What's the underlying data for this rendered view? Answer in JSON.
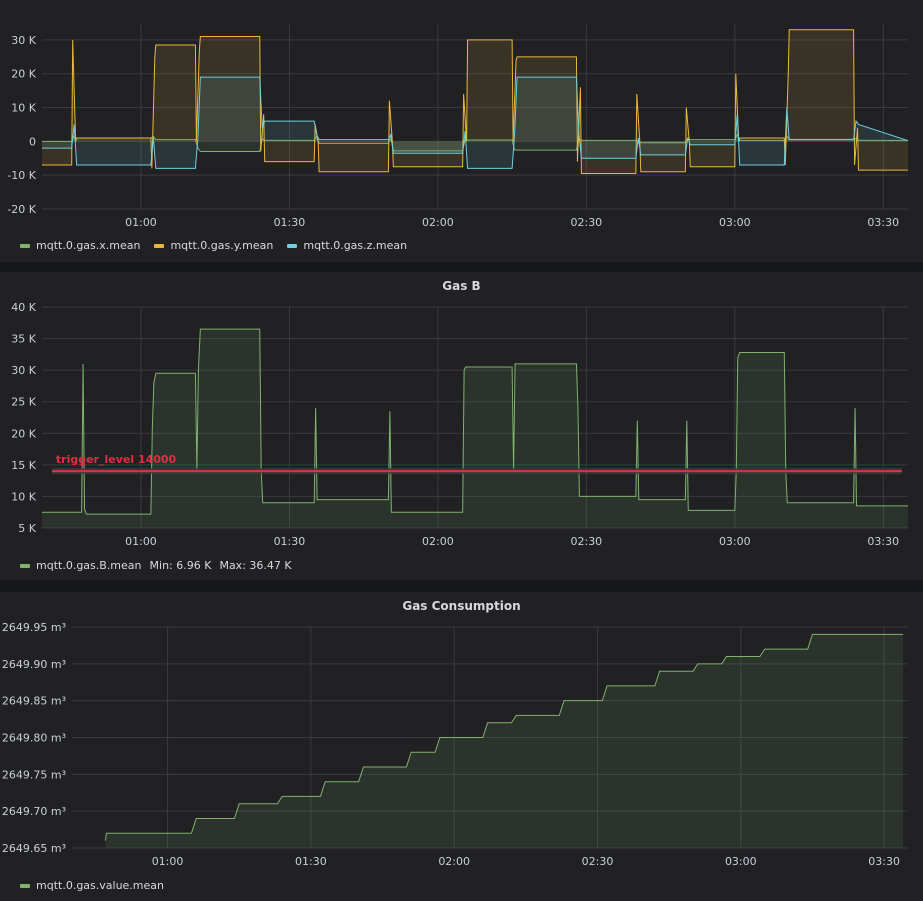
{
  "chart_data": [
    {
      "type": "area",
      "title": "",
      "ylim": [
        -20000,
        35000
      ],
      "y_ticks": [
        "30 K",
        "20 K",
        "10 K",
        "0",
        "-10 K",
        "-20 K"
      ],
      "y_tick_values": [
        30000,
        20000,
        10000,
        0,
        -10000,
        -20000
      ],
      "x_ticks": [
        "01:00",
        "01:30",
        "02:00",
        "02:30",
        "03:00",
        "03:30"
      ],
      "x_tick_minutes": [
        60,
        90,
        120,
        150,
        180,
        210
      ],
      "xlim_minutes": [
        40,
        215
      ],
      "grid": true,
      "legend_position": "bottom-left",
      "series": [
        {
          "name": "mqtt.0.gas.x.mean",
          "color": "#7eb26d",
          "x": [
            40,
            46,
            46.5,
            47,
            62,
            62.5,
            63,
            71,
            71.5,
            72,
            84,
            84.5,
            85,
            95,
            95.5,
            96,
            110,
            110.5,
            111,
            125,
            125.5,
            126,
            135,
            135.5,
            136,
            148,
            148.5,
            149,
            160,
            160.5,
            161,
            170,
            170.5,
            171,
            180,
            180.5,
            181,
            190,
            190.5,
            191,
            204,
            204.5,
            205,
            215
          ],
          "values": [
            0,
            0,
            1500,
            1000,
            1000,
            1500,
            500,
            500,
            -2000,
            -3000,
            -3000,
            800,
            300,
            300,
            1500,
            -600,
            -600,
            900,
            -2800,
            -2800,
            600,
            400,
            400,
            -2500,
            -2600,
            -2600,
            800,
            300,
            300,
            -500,
            -400,
            -400,
            1000,
            500,
            500,
            2000,
            300,
            300,
            1500,
            600,
            600,
            800,
            300,
            300
          ]
        },
        {
          "name": "mqtt.0.gas.y.mean",
          "color": "#eab839",
          "x": [
            40,
            46,
            46.2,
            46.8,
            47,
            62,
            62.2,
            62.8,
            63,
            71,
            71.2,
            71.8,
            72,
            84,
            84.2,
            84.8,
            85,
            95,
            95.2,
            95.8,
            96,
            110,
            110.2,
            110.8,
            111,
            125,
            125.2,
            125.8,
            126,
            135,
            135.2,
            135.8,
            136,
            148,
            148.2,
            148.8,
            149,
            160,
            160.2,
            160.8,
            161,
            170,
            170.2,
            170.8,
            171,
            180,
            180.2,
            180.8,
            181,
            190,
            190.2,
            190.8,
            191,
            204,
            204.2,
            204.8,
            205,
            215
          ],
          "values": [
            -7000,
            -7000,
            30000,
            0,
            1000,
            1000,
            -8000,
            25000,
            28500,
            28500,
            0,
            27000,
            31000,
            31000,
            -3000,
            8000,
            -6000,
            -6000,
            5000,
            0,
            -9000,
            -9000,
            12000,
            0,
            -7500,
            -7500,
            14000,
            0,
            30000,
            30000,
            0,
            24000,
            25000,
            25000,
            -6000,
            16000,
            -9500,
            -9500,
            14000,
            0,
            -9000,
            -9000,
            10000,
            0,
            -7500,
            -7500,
            20000,
            0,
            1000,
            1000,
            -7000,
            20000,
            33000,
            33000,
            -7000,
            4000,
            -8500,
            -8500
          ]
        },
        {
          "name": "mqtt.0.gas.z.mean",
          "color": "#6ed0e0",
          "x": [
            40,
            46,
            46.5,
            47,
            62,
            62.5,
            63,
            71,
            71.5,
            72,
            84,
            84.5,
            85,
            95,
            95.5,
            96,
            110,
            110.5,
            111,
            125,
            125.5,
            126,
            135,
            135.5,
            136,
            148,
            148.5,
            149,
            160,
            160.5,
            161,
            170,
            170.5,
            171,
            180,
            180.5,
            181,
            190,
            190.5,
            191,
            204,
            204.5,
            205,
            215
          ],
          "values": [
            -2000,
            -2000,
            5000,
            -7000,
            -7000,
            1000,
            -8000,
            -8000,
            1000,
            19000,
            19000,
            4000,
            6000,
            6000,
            2000,
            500,
            500,
            2000,
            -3500,
            -3500,
            3000,
            -8000,
            -8000,
            2000,
            19000,
            19000,
            2000,
            -5000,
            -5000,
            1000,
            -4000,
            -4000,
            1000,
            -1000,
            -1000,
            8000,
            -7000,
            -7000,
            10000,
            500,
            500,
            6000,
            5000,
            200
          ]
        }
      ]
    },
    {
      "type": "area",
      "title": "Gas B",
      "ylim": [
        5000,
        40000
      ],
      "y_ticks": [
        "40 K",
        "35 K",
        "30 K",
        "25 K",
        "20 K",
        "15 K",
        "10 K",
        "5 K"
      ],
      "y_tick_values": [
        40000,
        35000,
        30000,
        25000,
        20000,
        15000,
        10000,
        5000
      ],
      "x_ticks": [
        "01:00",
        "01:30",
        "02:00",
        "02:30",
        "03:00",
        "03:30"
      ],
      "x_tick_minutes": [
        60,
        90,
        120,
        150,
        180,
        210
      ],
      "xlim_minutes": [
        40,
        215
      ],
      "grid": true,
      "legend_position": "bottom-left",
      "threshold": {
        "label": "trigger_level 14000",
        "value": 14000,
        "color": "#e02f44"
      },
      "series": [
        {
          "name": "mqtt.0.gas.B.mean",
          "color": "#7eb26d",
          "min_label": "Min: 6.96 K",
          "max_label": "Max: 36.47 K",
          "x": [
            40,
            48,
            48.3,
            48.6,
            49,
            62,
            62.3,
            62.6,
            63,
            71,
            71.3,
            71.6,
            72,
            84,
            84.3,
            84.6,
            85,
            95,
            95.3,
            95.6,
            96,
            110,
            110.3,
            110.6,
            111,
            125,
            125.3,
            125.6,
            126,
            135,
            135.3,
            135.6,
            136,
            148,
            148.3,
            148.6,
            149,
            160,
            160.3,
            160.6,
            161,
            170,
            170.3,
            170.6,
            171,
            180,
            180.3,
            180.6,
            181,
            190,
            190.3,
            190.6,
            191,
            204,
            204.3,
            204.6,
            205,
            215
          ],
          "values": [
            7500,
            7500,
            31000,
            8000,
            7200,
            7200,
            21000,
            28000,
            29500,
            29500,
            14000,
            30000,
            36500,
            36500,
            14000,
            9000,
            9000,
            9000,
            24000,
            9500,
            9500,
            9500,
            23500,
            7500,
            7500,
            7500,
            30000,
            30500,
            30500,
            30500,
            14000,
            31000,
            31000,
            31000,
            24000,
            10000,
            10000,
            10000,
            22000,
            9500,
            9500,
            9500,
            22000,
            7800,
            7800,
            7800,
            14000,
            32000,
            32800,
            32800,
            14000,
            9000,
            9000,
            9000,
            24000,
            8500,
            8500,
            8500
          ]
        }
      ]
    },
    {
      "type": "area",
      "title": "Gas Consumption",
      "ylim": [
        2649.65,
        2649.95
      ],
      "y_ticks": [
        "2649.95 m³",
        "2649.90 m³",
        "2649.85 m³",
        "2649.80 m³",
        "2649.75 m³",
        "2649.70 m³",
        "2649.65 m³"
      ],
      "y_tick_values": [
        2649.95,
        2649.9,
        2649.85,
        2649.8,
        2649.75,
        2649.7,
        2649.65
      ],
      "x_ticks": [
        "01:00",
        "01:30",
        "02:00",
        "02:30",
        "03:00",
        "03:30"
      ],
      "x_tick_minutes": [
        60,
        90,
        120,
        150,
        180,
        210
      ],
      "xlim_minutes": [
        40,
        215
      ],
      "grid": true,
      "legend_position": "bottom-left",
      "series": [
        {
          "name": "mqtt.0.gas.value.mean",
          "color": "#7eb26d",
          "x": [
            47,
            47.2,
            65,
            66,
            74,
            75,
            83,
            84,
            92,
            93,
            100,
            101,
            110,
            111,
            116,
            117,
            126,
            127,
            132,
            133,
            142,
            143,
            151,
            152,
            162,
            163,
            170,
            171,
            176,
            177,
            184,
            185,
            194,
            195,
            206,
            207,
            214
          ],
          "values": [
            2649.66,
            2649.67,
            2649.67,
            2649.69,
            2649.69,
            2649.71,
            2649.71,
            2649.72,
            2649.72,
            2649.74,
            2649.74,
            2649.76,
            2649.76,
            2649.78,
            2649.78,
            2649.8,
            2649.8,
            2649.82,
            2649.82,
            2649.83,
            2649.83,
            2649.85,
            2649.85,
            2649.87,
            2649.87,
            2649.89,
            2649.89,
            2649.9,
            2649.9,
            2649.91,
            2649.91,
            2649.92,
            2649.92,
            2649.94,
            2649.94,
            2649.94,
            2649.94
          ]
        }
      ]
    }
  ]
}
